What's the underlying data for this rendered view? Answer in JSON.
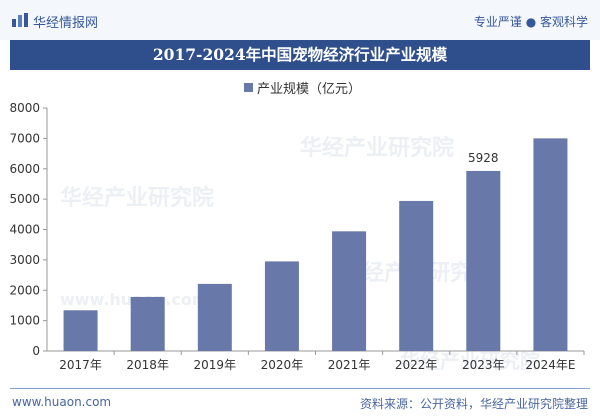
{
  "header": {
    "brand": "华经情报网",
    "slogan": "专业严谨 ● 客观科学"
  },
  "footer": {
    "website": "www.huaon.com",
    "source": "资料来源：公开资料，华经产业研究院整理"
  },
  "watermark": {
    "text": "华经产业研究院",
    "url": "www.huaon.com"
  },
  "colors": {
    "title_bg": "#2f4e8c",
    "bar": "#6878a8",
    "header_bg": "#f4f7fc",
    "brand_text": "#36589b"
  },
  "icons": {
    "logo": "bar-chart-logo-icon"
  },
  "chart_data": {
    "type": "bar",
    "title": "2017-2024年中国宠物经济行业产业规模",
    "categories": [
      "2017年",
      "2018年",
      "2019年",
      "2020年",
      "2021年",
      "2022年",
      "2023年",
      "2024年E"
    ],
    "series": [
      {
        "name": "产业规模（亿元）",
        "values": [
          1340,
          1780,
          2210,
          2950,
          3940,
          4940,
          5928,
          7000
        ]
      }
    ],
    "data_labels": [
      {
        "category": "2023年",
        "value": "5928"
      }
    ],
    "ylim": [
      0,
      8000
    ],
    "yticks": [
      0,
      1000,
      2000,
      3000,
      4000,
      5000,
      6000,
      7000,
      8000
    ],
    "xlabel": "",
    "ylabel": "",
    "grid": false,
    "legend_position": "top-center"
  }
}
